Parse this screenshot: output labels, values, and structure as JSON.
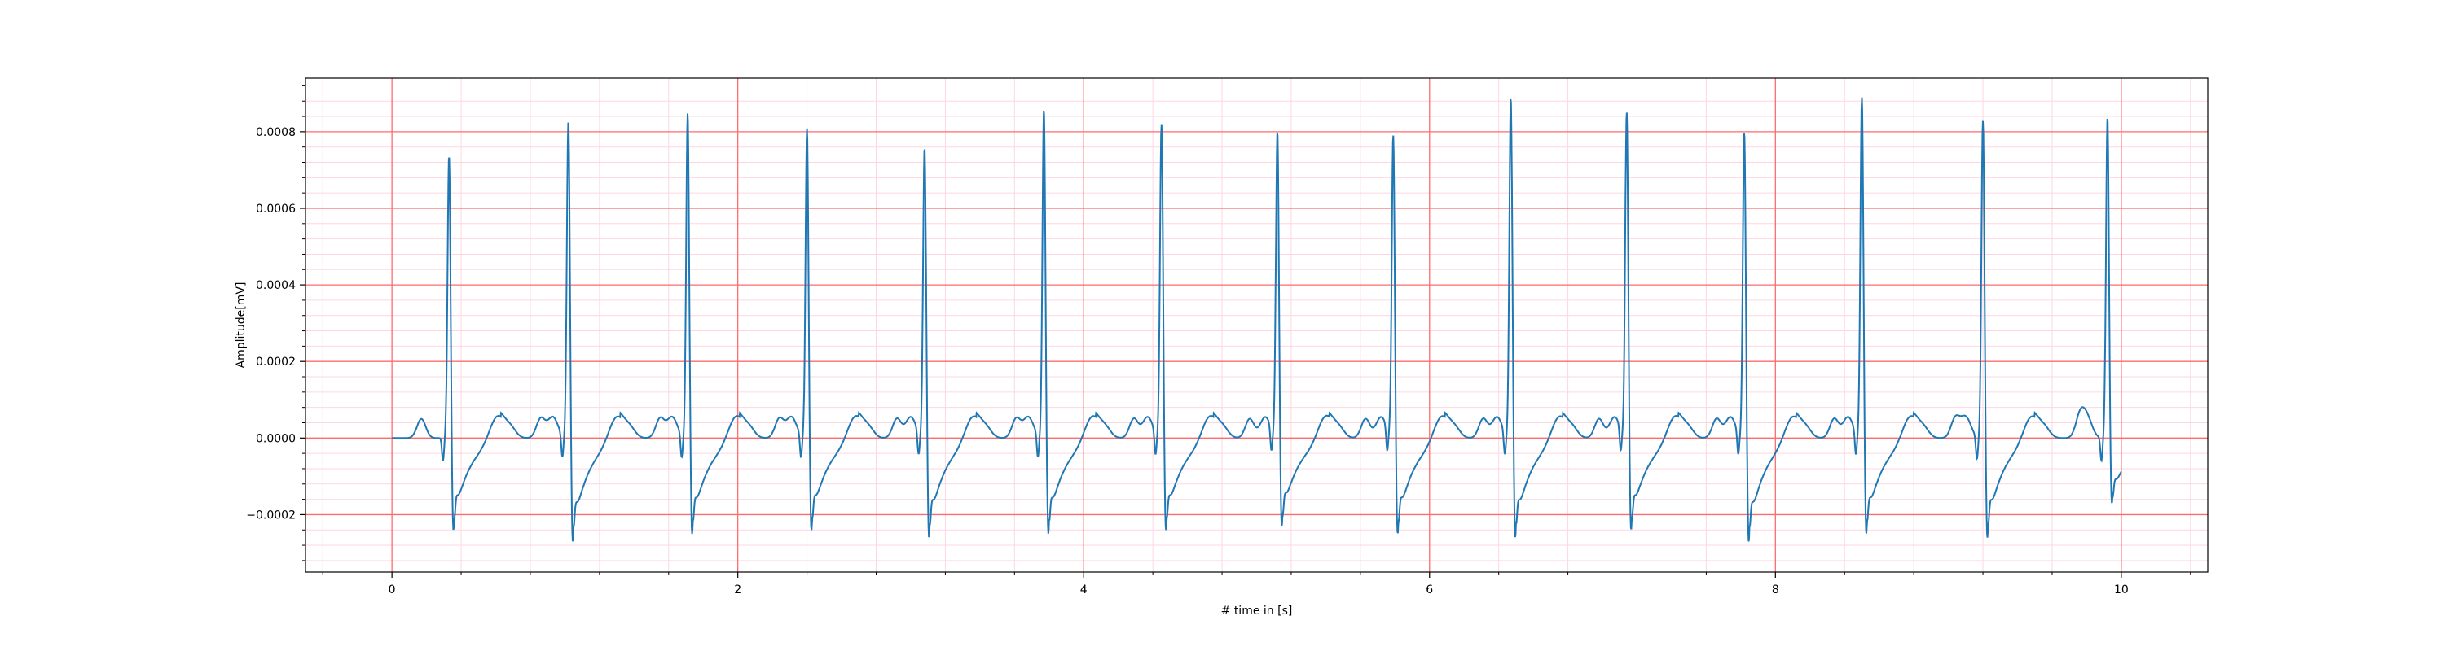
{
  "chart_data": {
    "type": "line",
    "xlabel": "# time in [s]",
    "ylabel": "Amplitude[mV]",
    "xlim": [
      -0.5,
      10.5
    ],
    "ylim": [
      -0.00035,
      0.00094
    ],
    "xticks": [
      0,
      2,
      4,
      6,
      8,
      10
    ],
    "xtick_labels": [
      "0",
      "2",
      "4",
      "6",
      "8",
      "10"
    ],
    "yticks": [
      -0.0002,
      0.0,
      0.0002,
      0.0004,
      0.0006,
      0.0008
    ],
    "ytick_labels": [
      "−0.0002",
      "0.0000",
      "0.0002",
      "0.0004",
      "0.0006",
      "0.0008"
    ],
    "grid": {
      "major": true,
      "minor": true,
      "major_color": "#ff6b6b",
      "minor_color": "#ffd6e0"
    },
    "line_color": "#1f77b4",
    "r_peaks": {
      "times": [
        0.33,
        1.02,
        1.71,
        2.4,
        3.08,
        3.77,
        4.45,
        5.12,
        5.79,
        6.47,
        7.14,
        7.82,
        8.5,
        9.2,
        9.92
      ],
      "amplitudes": [
        0.00074,
        0.00083,
        0.00085,
        0.00081,
        0.00076,
        0.00086,
        0.00082,
        0.0008,
        0.00079,
        0.00089,
        0.00085,
        0.0008,
        0.00089,
        0.00083,
        0.00084
      ],
      "s_troughs": [
        -0.00025,
        -0.00028,
        -0.00026,
        -0.00025,
        -0.00027,
        -0.00026,
        -0.00025,
        -0.00024,
        -0.00026,
        -0.00027,
        -0.00025,
        -0.00028,
        -0.00026,
        -0.00027,
        -0.00018
      ]
    }
  }
}
